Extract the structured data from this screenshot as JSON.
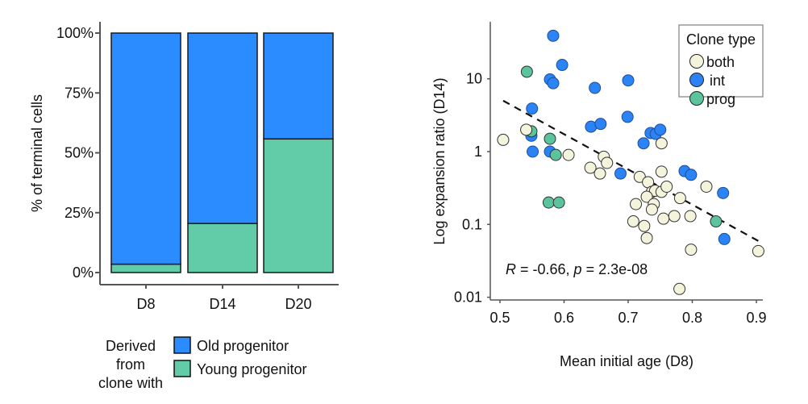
{
  "colors": {
    "old": "#2b8cff",
    "young": "#62cba8",
    "both": "#f4f3dc",
    "int": "#2b83f6",
    "prog": "#5cc49c",
    "axis": "#555555"
  },
  "chart_data": [
    {
      "type": "bar",
      "stacked": true,
      "title": "",
      "xlabel": "",
      "ylabel": "% of terminal cells",
      "categories": [
        "D8",
        "D14",
        "D20"
      ],
      "ylim": [
        0,
        100
      ],
      "yticks": [
        "0%",
        "25%",
        "50%",
        "75%",
        "100%"
      ],
      "ytick_values": [
        0,
        25,
        50,
        75,
        100
      ],
      "series": [
        {
          "name": "Young progenitor",
          "key": "young",
          "values": [
            3.5,
            20.5,
            55.8
          ]
        },
        {
          "name": "Old progenitor",
          "key": "old",
          "values": [
            96.5,
            79.5,
            44.2
          ]
        }
      ],
      "legend": {
        "title_lines": [
          "Derived",
          "from",
          "clone with"
        ],
        "items": [
          {
            "label": "Old progenitor",
            "key": "old"
          },
          {
            "label": "Young progenitor",
            "key": "young"
          }
        ],
        "placement": "bottom"
      },
      "grid": false
    },
    {
      "type": "scatter",
      "title": "",
      "xlabel": "Mean initial age (D8)",
      "ylabel": "Log expansion ratio (D14)",
      "xlim": [
        0.48,
        0.92
      ],
      "ylim": [
        0.01,
        50
      ],
      "yscale": "log",
      "xticks": [
        "0.5",
        "0.6",
        "0.7",
        "0.8",
        "0.9"
      ],
      "xtick_values": [
        0.5,
        0.6,
        0.7,
        0.8,
        0.9
      ],
      "yticks": [
        "0.01",
        "0.1",
        "1",
        "10"
      ],
      "ytick_values": [
        0.01,
        0.1,
        1,
        10
      ],
      "grid": false,
      "annotation": {
        "r_label": "R",
        "r_text": " = -0.66, ",
        "p_label": "p",
        "p_text": " = 2.3e-08"
      },
      "trendline": {
        "style": "dashed",
        "x": [
          0.505,
          0.905
        ],
        "y": [
          5.0,
          0.058
        ]
      },
      "legend": {
        "title": "Clone type",
        "items": [
          {
            "label": "both",
            "key": "both"
          },
          {
            "label": "int",
            "key": "int"
          },
          {
            "label": "prog",
            "key": "prog"
          }
        ],
        "placement": "top-right"
      },
      "series": [
        {
          "name": "int",
          "key": "int",
          "points": [
            [
              0.583,
              39
            ],
            [
              0.597,
              15.5
            ],
            [
              0.578,
              9.8
            ],
            [
              0.583,
              8.7
            ],
            [
              0.648,
              7.5
            ],
            [
              0.7,
              9.5
            ],
            [
              0.55,
              3.9
            ],
            [
              0.699,
              3.0
            ],
            [
              0.642,
              2.2
            ],
            [
              0.657,
              2.4
            ],
            [
              0.735,
              1.8
            ],
            [
              0.743,
              1.75
            ],
            [
              0.75,
              2.0
            ],
            [
              0.724,
              1.3
            ],
            [
              0.549,
              1.65
            ],
            [
              0.551,
              1.0
            ],
            [
              0.578,
              1.0
            ],
            [
              0.688,
              0.5
            ],
            [
              0.788,
              0.54
            ],
            [
              0.798,
              0.48
            ],
            [
              0.848,
              0.27
            ],
            [
              0.85,
              0.063
            ]
          ]
        },
        {
          "name": "prog",
          "key": "prog",
          "points": [
            [
              0.542,
              12.5
            ],
            [
              0.549,
              1.9
            ],
            [
              0.578,
              1.5
            ],
            [
              0.587,
              0.9
            ],
            [
              0.576,
              0.2
            ],
            [
              0.592,
              0.2
            ],
            [
              0.837,
              0.11
            ]
          ]
        },
        {
          "name": "both",
          "key": "both",
          "points": [
            [
              0.505,
              1.45
            ],
            [
              0.541,
              2.0
            ],
            [
              0.607,
              0.9
            ],
            [
              0.662,
              0.85
            ],
            [
              0.667,
              0.7
            ],
            [
              0.641,
              0.6
            ],
            [
              0.656,
              0.5
            ],
            [
              0.752,
              1.3
            ],
            [
              0.752,
              0.53
            ],
            [
              0.718,
              0.45
            ],
            [
              0.731,
              0.38
            ],
            [
              0.737,
              0.28
            ],
            [
              0.742,
              0.29
            ],
            [
              0.752,
              0.28
            ],
            [
              0.76,
              0.33
            ],
            [
              0.729,
              0.24
            ],
            [
              0.74,
              0.19
            ],
            [
              0.737,
              0.16
            ],
            [
              0.712,
              0.19
            ],
            [
              0.781,
              0.23
            ],
            [
              0.822,
              0.33
            ],
            [
              0.708,
              0.11
            ],
            [
              0.725,
              0.095
            ],
            [
              0.729,
              0.065
            ],
            [
              0.755,
              0.12
            ],
            [
              0.772,
              0.13
            ],
            [
              0.797,
              0.13
            ],
            [
              0.798,
              0.045
            ],
            [
              0.903,
              0.043
            ],
            [
              0.78,
              0.013
            ]
          ]
        }
      ]
    }
  ]
}
